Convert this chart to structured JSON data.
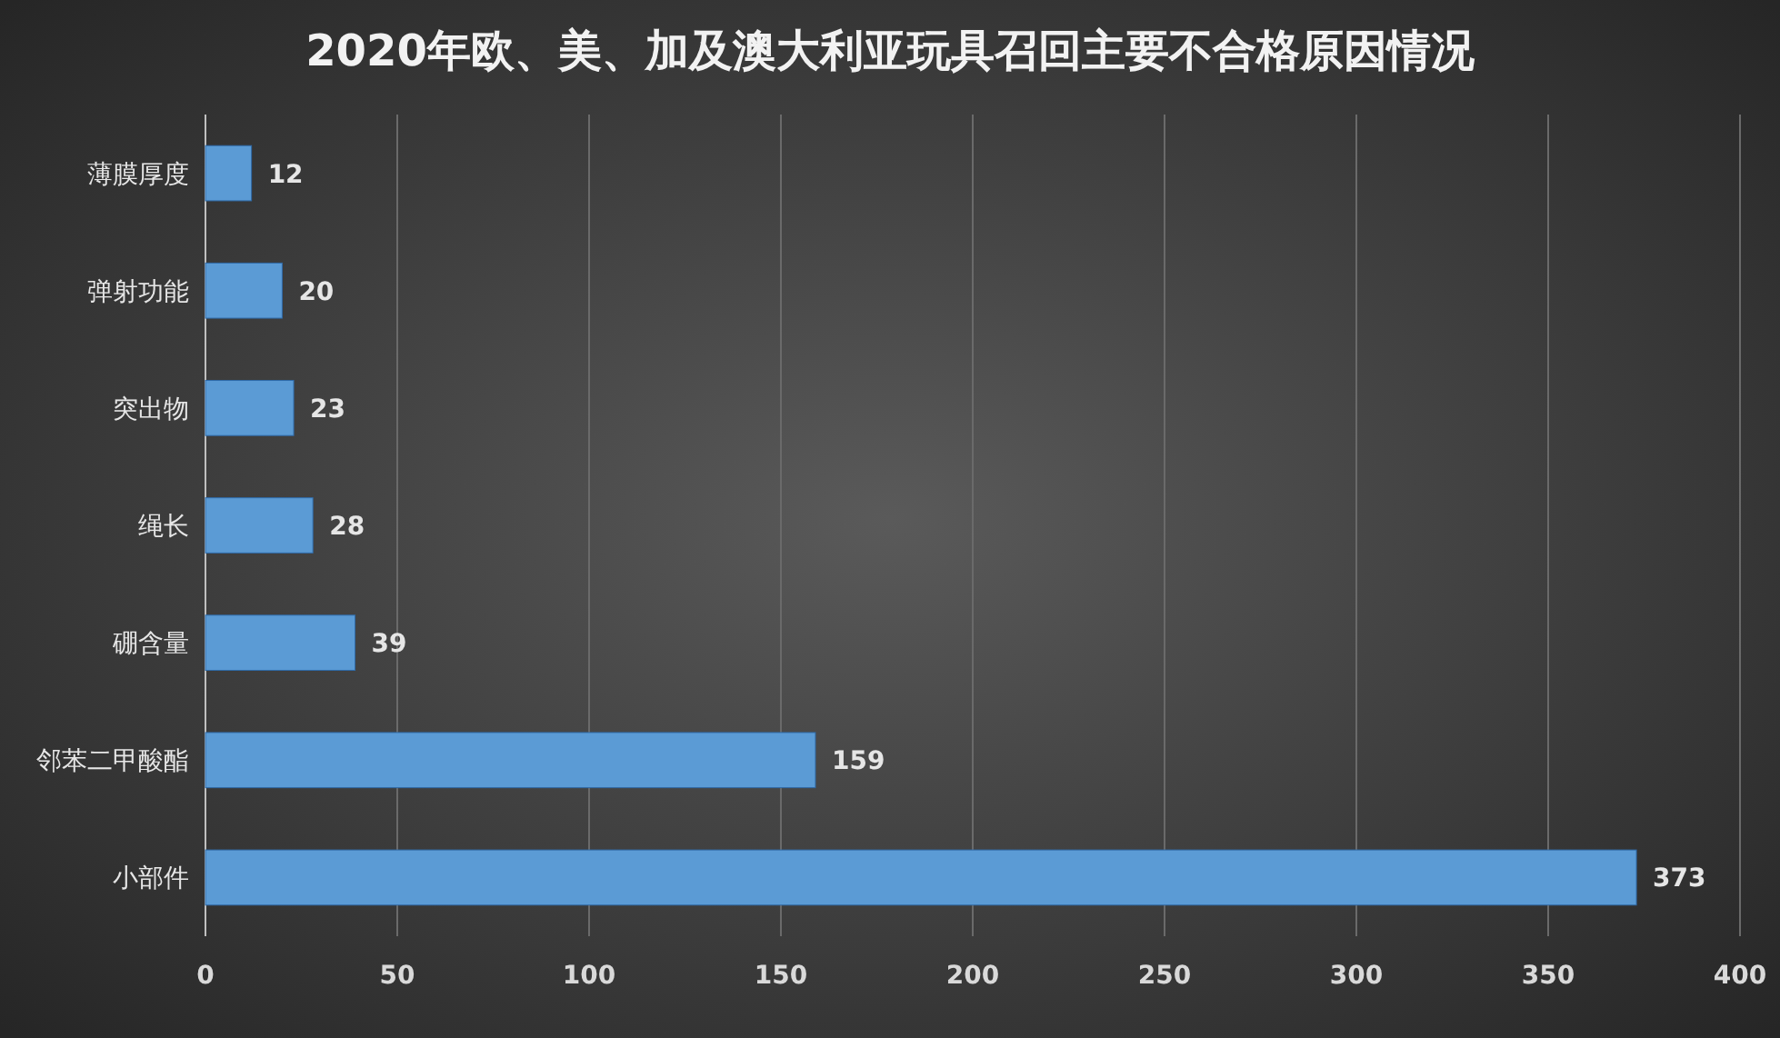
{
  "chart_data": {
    "type": "bar",
    "orientation": "horizontal",
    "title": "2020年欧、美、加及澳大利亚玩具召回主要不合格原因情况",
    "categories": [
      "薄膜厚度",
      "弹射功能",
      "突出物",
      "绳长",
      "硼含量",
      "邻苯二甲酸酯",
      "小部件"
    ],
    "values": [
      12,
      20,
      23,
      28,
      39,
      159,
      373
    ],
    "color": "#5b9bd5",
    "xlim": [
      0,
      400
    ],
    "xticks": [
      0,
      50,
      100,
      150,
      200,
      250,
      300,
      350,
      400
    ],
    "grid": "x",
    "data_labels": true
  }
}
